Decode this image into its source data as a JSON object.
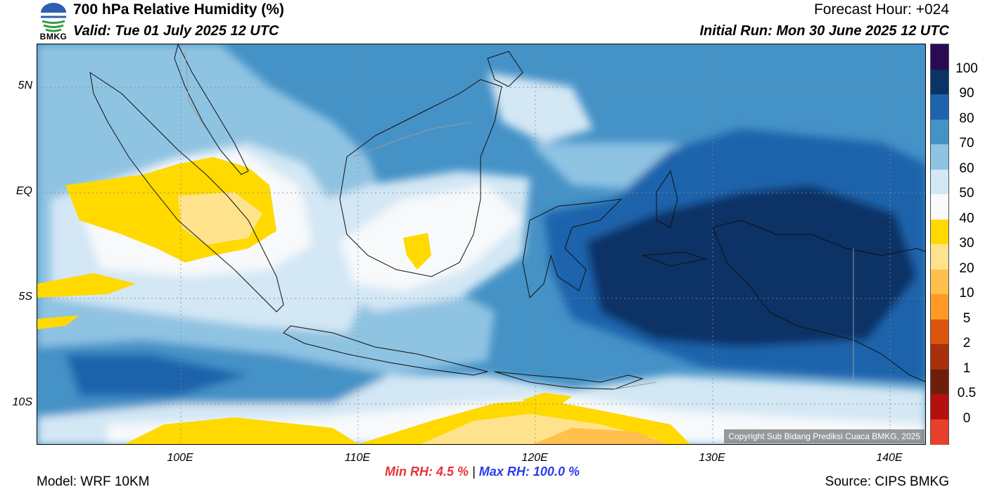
{
  "header": {
    "logo_text": "BMKG",
    "title": "700 hPa Relative Humidity (%)",
    "valid": "Valid: Tue 01 July 2025 12 UTC",
    "forecast_hour": "Forecast Hour: +024",
    "initial_run": "Initial Run: Mon 30 June 2025 12 UTC"
  },
  "map": {
    "lat_labels": [
      "5N",
      "EQ",
      "5S",
      "10S"
    ],
    "lon_labels": [
      "100E",
      "110E",
      "120E",
      "130E",
      "140E"
    ],
    "copyright": "Copyright Sub Bidang Prediksi Cuaca BMKG, 2025"
  },
  "colorbar": {
    "labels": [
      "100",
      "90",
      "80",
      "70",
      "60",
      "50",
      "40",
      "30",
      "20",
      "10",
      "5",
      "2",
      "1",
      "0.5",
      "0"
    ],
    "colors": [
      "#2a0a52",
      "#0b3366",
      "#1f63ac",
      "#4592c7",
      "#8fc3e2",
      "#d3e7f4",
      "#f7f9fb",
      "#ffd900",
      "#ffe38c",
      "#ffc04d",
      "#ff9a24",
      "#d9560c",
      "#a8300a",
      "#6e1f0c",
      "#b51010",
      "#e8402c"
    ]
  },
  "footer": {
    "min_label": "Min RH:",
    "min_value": "4.5 %",
    "separator": "|",
    "max_label": "Max RH:",
    "max_value": "100.0 %",
    "model": "Model: WRF 10KM",
    "source": "Source: CIPS BMKG"
  }
}
